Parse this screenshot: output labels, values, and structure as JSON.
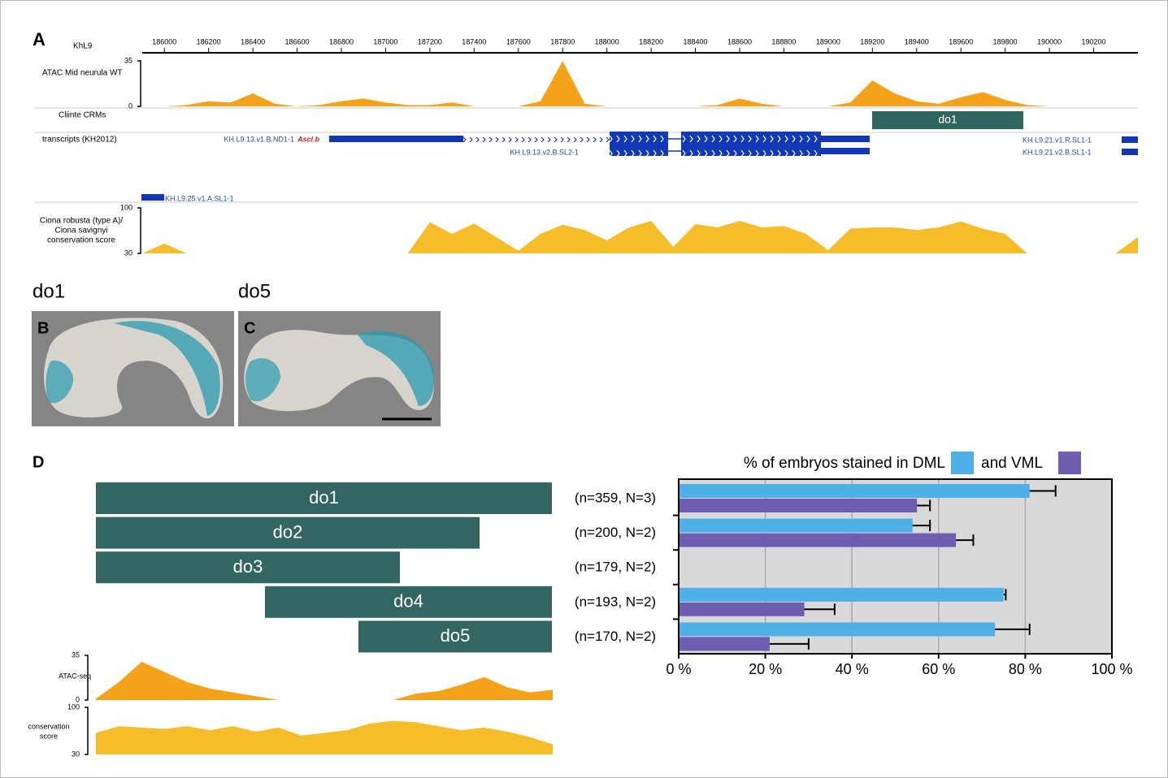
{
  "panel_labels": [
    "A",
    "B",
    "C",
    "D"
  ],
  "genome_browser": {
    "chromosome": "KhL9",
    "xlim": [
      185900,
      190400
    ],
    "xticks": [
      186000,
      186200,
      186400,
      186600,
      186800,
      187000,
      187200,
      187400,
      187600,
      187800,
      188000,
      188200,
      188400,
      188600,
      188800,
      189000,
      189200,
      189400,
      189600,
      189800,
      190000,
      190200
    ],
    "x": [
      185900,
      186000,
      186100,
      186200,
      186300,
      186400,
      186500,
      186600,
      186700,
      186800,
      186900,
      187000,
      187100,
      187200,
      187300,
      187400,
      187500,
      187600,
      187700,
      187800,
      187900,
      188000,
      188100,
      188200,
      188300,
      188400,
      188500,
      188600,
      188700,
      188800,
      188900,
      189000,
      189100,
      189200,
      189300,
      189400,
      189500,
      189600,
      189700,
      189800,
      189900,
      190000,
      190100,
      190200,
      190300,
      190400
    ],
    "atac": {
      "label": "ATAC Mid neurula WT",
      "color": "#f5a21b",
      "ylim": [
        0,
        35
      ],
      "yticks": [
        0,
        35
      ],
      "values": [
        0,
        0,
        1,
        4,
        3,
        10,
        2,
        0,
        1,
        4,
        6,
        3,
        1,
        1,
        3,
        0,
        0,
        0,
        4,
        35,
        2,
        0,
        0,
        0,
        0,
        0,
        1,
        6,
        2,
        0,
        0,
        0,
        3,
        20,
        10,
        4,
        2,
        7,
        11,
        5,
        1,
        0,
        0,
        0,
        0,
        0
      ]
    },
    "crms": {
      "label": "Cliinte CRMs",
      "element": "do1"
    },
    "transcripts": {
      "label": "transcripts (KH2012)",
      "names": [
        "KH.L9.13.v1.B.ND1-1",
        "KH.L9.13.v2.B.SL2-1",
        "KH.L9.21.v1.R.SL1-1",
        "KH.L9.21.v2.B.SL1-1",
        "KH.L9.25.v1.A.SL1-1"
      ],
      "gene": "Ascl.b"
    },
    "conservation": {
      "label": [
        "Ciona robusta (type A)/",
        "Ciona savignyi",
        "conservation score"
      ],
      "color": "#f6bd2a",
      "ylim": [
        30,
        100
      ],
      "yticks": [
        30,
        100
      ],
      "values": [
        30,
        45,
        30,
        30,
        30,
        30,
        30,
        30,
        30,
        30,
        30,
        30,
        30,
        78,
        60,
        76,
        55,
        34,
        60,
        74,
        66,
        50,
        70,
        80,
        40,
        75,
        70,
        80,
        70,
        72,
        60,
        35,
        68,
        70,
        70,
        66,
        70,
        79,
        68,
        60,
        30,
        30,
        30,
        30,
        30,
        55
      ]
    }
  },
  "images": [
    {
      "label": "do1"
    },
    {
      "label": "do5"
    }
  ],
  "fragment_tracks": {
    "atac": {
      "label": "ATAC-seq",
      "color": "#f5a21b",
      "ylim": [
        0,
        35
      ],
      "yticks": [
        0,
        35
      ],
      "values": [
        1,
        14,
        30,
        22,
        14,
        9,
        6,
        3,
        0,
        0,
        0,
        0,
        0,
        0,
        5,
        7,
        12,
        18,
        10,
        6,
        8
      ]
    },
    "conservation": {
      "label": [
        "conservation",
        "score"
      ],
      "color": "#f6bd2a",
      "ylim": [
        30,
        100
      ],
      "yticks": [
        30,
        100
      ],
      "values": [
        62,
        72,
        70,
        68,
        72,
        66,
        72,
        64,
        70,
        58,
        62,
        66,
        76,
        80,
        78,
        72,
        66,
        70,
        64,
        56,
        45
      ]
    }
  },
  "chart_data": {
    "type": "hbar",
    "categories": [
      "do1",
      "do2",
      "do3",
      "do4",
      "do5"
    ],
    "sample_sizes": [
      "(n=359, N=3)",
      "(n=200, N=2)",
      "(n=179, N=2)",
      "(n=193, N=2)",
      "(n=170, N=2)"
    ],
    "series": [
      {
        "name": "% of embryos stained in DML",
        "color": "#4fb0e8",
        "values": [
          81,
          54,
          null,
          75,
          73
        ],
        "errors": [
          6,
          4,
          null,
          0.5,
          8
        ]
      },
      {
        "name": "and VML",
        "color": "#6f5db0",
        "values": [
          55,
          64,
          null,
          29,
          21
        ],
        "errors": [
          3,
          4,
          null,
          7,
          9
        ]
      }
    ],
    "xlim": [
      0,
      100
    ],
    "xticks": [
      {
        "value": 0,
        "label": "0 %"
      },
      {
        "value": 20,
        "label": "20 %"
      },
      {
        "value": 40,
        "label": "40 %"
      },
      {
        "value": 60,
        "label": "60 %"
      },
      {
        "value": 80,
        "label": "80 %"
      },
      {
        "value": 100,
        "label": "100 %"
      }
    ],
    "grid": true
  }
}
